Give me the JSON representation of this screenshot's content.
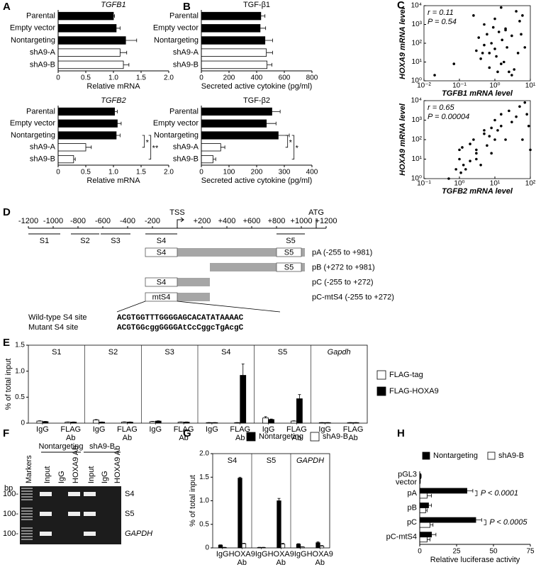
{
  "chart_data": [
    {
      "type": "bar",
      "orientation": "horizontal",
      "panel": "A",
      "title": "TGFB1",
      "title_italic": true,
      "categories": [
        "Parental",
        "Empty vector",
        "Nontargeting",
        "shA9-A",
        "shA9-B"
      ],
      "values": [
        1.0,
        1.05,
        1.22,
        1.12,
        1.18
      ],
      "errors": [
        0.02,
        0.07,
        0.2,
        0.12,
        0.1
      ],
      "colors": [
        "#000000",
        "#000000",
        "#000000",
        "#ffffff",
        "#ffffff"
      ],
      "xlim": [
        0,
        2
      ],
      "xticks": [
        0,
        0.5,
        {
          "value": 1,
          "label": "1.0"
        },
        1.5,
        {
          "value": 2,
          "label": "2.0"
        }
      ],
      "xlabel": "Relative mRNA"
    },
    {
      "type": "bar",
      "orientation": "horizontal",
      "title": "TGFB2",
      "title_italic": true,
      "categories": [
        "Parental",
        "Empty vector",
        "Nontargeting",
        "shA9-A",
        "shA9-B"
      ],
      "values": [
        1.02,
        1.07,
        1.05,
        0.5,
        0.28
      ],
      "errors": [
        0.05,
        0.07,
        0.07,
        0.1,
        0.03
      ],
      "colors": [
        "#000000",
        "#000000",
        "#000000",
        "#ffffff",
        "#ffffff"
      ],
      "xlim": [
        0,
        2
      ],
      "xticks": [
        0,
        0.5,
        {
          "value": 1,
          "label": "1.0"
        },
        1.5,
        {
          "value": 2,
          "label": "2.0"
        }
      ],
      "xlabel": "Relative mRNA",
      "annotations": [
        "*",
        "**"
      ]
    },
    {
      "type": "bar",
      "orientation": "horizontal",
      "panel": "B",
      "title": "TGF-β1",
      "title_italic": false,
      "categories": [
        "Parental",
        "Empty vector",
        "Nontargeting",
        "shA9-A",
        "shA9-B"
      ],
      "values": [
        430,
        425,
        460,
        470,
        475
      ],
      "errors": [
        30,
        40,
        55,
        45,
        35
      ],
      "colors": [
        "#000000",
        "#000000",
        "#000000",
        "#ffffff",
        "#ffffff"
      ],
      "xlim": [
        0,
        800
      ],
      "xticks": [
        0,
        200,
        400,
        600,
        800
      ],
      "xlabel": "Secreted active cytokine (pg/ml)"
    },
    {
      "type": "bar",
      "orientation": "horizontal",
      "title": "TGF-β2",
      "title_italic": false,
      "categories": [
        "Parental",
        "Empty vector",
        "Nontargeting",
        "shA9-A",
        "shA9-B"
      ],
      "values": [
        255,
        235,
        278,
        70,
        42
      ],
      "errors": [
        30,
        35,
        40,
        15,
        10
      ],
      "colors": [
        "#000000",
        "#000000",
        "#000000",
        "#ffffff",
        "#ffffff"
      ],
      "xlim": [
        0,
        400
      ],
      "xticks": [
        0,
        100,
        200,
        300,
        400
      ],
      "xlabel": "Secreted active cytokine (pg/ml)",
      "annotations": [
        "*",
        "*"
      ]
    },
    {
      "type": "scatter",
      "panel": "C",
      "xlabel": "TGFB1 mRNA level",
      "ylabel": "HOXA9 mRNA level",
      "axis_labels_italic": true,
      "annotations": [
        "r = 0.11",
        "P = 0.54"
      ],
      "log_x": true,
      "log_y": true,
      "color": "#000000",
      "x": [
        0.02,
        0.07,
        0.25,
        0.3,
        0.35,
        0.4,
        0.5,
        0.5,
        0.6,
        0.7,
        0.7,
        0.8,
        0.9,
        1.0,
        1.0,
        1.1,
        1.2,
        1.3,
        1.5,
        1.6,
        1.8,
        2,
        2.2,
        2.5,
        3,
        3.5,
        4,
        4.5,
        5,
        5.5,
        6,
        7,
        3,
        2,
        1.5,
        0.45
      ],
      "y": [
        2,
        8,
        3000,
        40,
        200,
        15,
        80,
        1000,
        300,
        30,
        5,
        100,
        700,
        2000,
        50,
        20,
        3,
        400,
        8000,
        150,
        10,
        600,
        60,
        3,
        250,
        4,
        5000,
        30,
        1500,
        300,
        3000,
        60,
        2,
        500,
        8,
        30
      ],
      "xlim": [
        0.01,
        10
      ],
      "xticks": [
        {
          "value": 0.01,
          "label": "10⁻²"
        },
        {
          "value": 0.1,
          "label": "10⁻¹"
        },
        {
          "value": 1,
          "label": "10⁰"
        },
        {
          "value": 10,
          "label": "10¹"
        }
      ],
      "ylim": [
        1,
        10000
      ],
      "yticks": [
        {
          "value": 1,
          "label": "10⁰"
        },
        {
          "value": 10,
          "label": "10¹"
        },
        {
          "value": 100,
          "label": "10²"
        },
        {
          "value": 1000,
          "label": "10³"
        },
        {
          "value": 10000,
          "label": "10⁴"
        }
      ]
    },
    {
      "type": "scatter",
      "xlabel": "TGFB2 mRNA level",
      "ylabel": "HOXA9 mRNA level",
      "axis_labels_italic": true,
      "annotations": [
        "r = 0.65",
        "P = 0.00004"
      ],
      "log_x": true,
      "log_y": true,
      "color": "#000000",
      "x": [
        0.5,
        0.8,
        1,
        1,
        1.1,
        1.2,
        1.5,
        2,
        2,
        2.5,
        3,
        3,
        4,
        5,
        5,
        6,
        7,
        8,
        10,
        10,
        12,
        15,
        15,
        20,
        25,
        30,
        40,
        50,
        60,
        70,
        80,
        90,
        100,
        8,
        3,
        1.3
      ],
      "y": [
        1,
        3,
        10,
        30,
        2,
        40,
        3,
        8,
        60,
        100,
        20,
        30,
        5,
        200,
        300,
        50,
        150,
        400,
        100,
        1000,
        300,
        500,
        2000,
        100,
        3000,
        800,
        1500,
        5000,
        100,
        8000,
        2000,
        500,
        30,
        20,
        10,
        5
      ],
      "xlim": [
        0.1,
        100
      ],
      "xticks": [
        {
          "value": 0.1,
          "label": "10⁻¹"
        },
        {
          "value": 1,
          "label": "10⁰"
        },
        {
          "value": 10,
          "label": "10¹"
        },
        {
          "value": 100,
          "label": "10²"
        }
      ],
      "ylim": [
        1,
        10000
      ],
      "yticks": [
        {
          "value": 1,
          "label": "10⁰"
        },
        {
          "value": 10,
          "label": "10¹"
        },
        {
          "value": 100,
          "label": "10²"
        },
        {
          "value": 1000,
          "label": "10³"
        },
        {
          "value": 10000,
          "label": "10⁴"
        }
      ]
    },
    {
      "type": "facet_bar",
      "panel": "E",
      "facets": [
        "S1",
        "S2",
        "S3",
        "S4",
        "S5",
        "Gapdh"
      ],
      "facets_italic": [
        false,
        false,
        false,
        false,
        false,
        true
      ],
      "categories": [
        [
          "IgG"
        ],
        [
          "FLAG",
          "Ab"
        ]
      ],
      "series": [
        {
          "name": "FLAG-tag",
          "color": "#ffffff",
          "values": [
            [
              0.04,
              0.02
            ],
            [
              0.06,
              0.02
            ],
            [
              0.03,
              0.02
            ],
            [
              0.01,
              0.01
            ],
            [
              0.1,
              0.04
            ],
            [
              0.01,
              0.01
            ]
          ],
          "errors": [
            [
              0.005,
              0.003
            ],
            [
              0.01,
              0.005
            ],
            [
              0.005,
              0.003
            ],
            [
              0.002,
              0.002
            ],
            [
              0.025,
              0.005
            ],
            [
              0.002,
              0.002
            ]
          ]
        },
        {
          "name": "FLAG-HOXA9",
          "color": "#000000",
          "values": [
            [
              0.03,
              0.02
            ],
            [
              0.02,
              0.02
            ],
            [
              0.04,
              0.02
            ],
            [
              0.01,
              0.92
            ],
            [
              0.07,
              0.47
            ],
            [
              0.01,
              0.01
            ]
          ],
          "errors": [
            [
              0.004,
              0.003
            ],
            [
              0.003,
              0.003
            ],
            [
              0.005,
              0.003
            ],
            [
              0.002,
              0.22
            ],
            [
              0.01,
              0.08
            ],
            [
              0.002,
              0.002
            ]
          ]
        }
      ],
      "ylim": [
        0,
        1.5
      ],
      "yticks": [
        0,
        0.5,
        {
          "value": 1,
          "label": "1.0"
        },
        1.5
      ],
      "ylabel": "% of total input",
      "legend": "right"
    },
    {
      "type": "facet_bar",
      "panel": "G",
      "facets": [
        "S4",
        "S5",
        "GAPDH"
      ],
      "facets_italic": [
        false,
        false,
        true
      ],
      "categories": [
        [
          "IgG"
        ],
        [
          "HOXA9",
          "Ab"
        ]
      ],
      "series": [
        {
          "name": "Nontargeting",
          "color": "#000000",
          "values": [
            [
              0.06,
              1.48
            ],
            [
              0.01,
              1.0
            ],
            [
              0.08,
              0.11
            ]
          ],
          "errors": [
            [
              0.005,
              0.02
            ],
            [
              0.002,
              0.05
            ],
            [
              0.01,
              0.02
            ]
          ]
        },
        {
          "name": "shA9-B",
          "color": "#ffffff",
          "values": [
            [
              0.01,
              0.09
            ],
            [
              0.01,
              0.08
            ],
            [
              0.02,
              0.04
            ]
          ],
          "errors": [
            [
              0.002,
              0.01
            ],
            [
              0.002,
              0.02
            ],
            [
              0.005,
              0.01
            ]
          ]
        }
      ],
      "ylim": [
        0,
        2
      ],
      "yticks": [
        0,
        0.5,
        {
          "value": 1,
          "label": "1.0"
        },
        1.5,
        {
          "value": 2,
          "label": "2.0"
        }
      ],
      "ylabel": "% of total input",
      "legend": "top"
    },
    {
      "type": "bar",
      "orientation": "horizontal",
      "panel": "H",
      "categories": [
        [
          "pGL3",
          "vector"
        ],
        [
          "pA"
        ],
        [
          "pB"
        ],
        [
          "pC"
        ],
        [
          "pC-mtS4"
        ]
      ],
      "series": [
        {
          "name": "Nontargeting",
          "color": "#000000",
          "values": [
            0.8,
            32,
            6,
            38,
            8
          ],
          "errors": [
            0.2,
            4,
            2,
            4,
            3
          ]
        },
        {
          "name": "shA9-B",
          "color": "#ffffff",
          "values": [
            0.3,
            5,
            4,
            7,
            5
          ],
          "errors": [
            0.1,
            3,
            1,
            2,
            2
          ]
        }
      ],
      "xlim": [
        0,
        75
      ],
      "xticks": [
        0,
        25,
        50,
        75
      ],
      "xlabel": "Relative luciferase activity",
      "annotations": [
        "P < 0.0001",
        "P < 0.0005"
      ],
      "legend": "top"
    }
  ],
  "diagram": {
    "panel": "D",
    "ruler": [
      "-1200",
      "-1000",
      "-800",
      "-600",
      "-400",
      "-200",
      "+200",
      "+400",
      "+600",
      "+800",
      "+1000",
      "+1200"
    ],
    "tss": "TSS",
    "atg": "ATG",
    "sites": [
      "S1",
      "S2",
      "S3",
      "S4",
      "S5"
    ],
    "constructs": [
      {
        "label": "pA (-255 to +981)",
        "boxes": [
          "S4",
          "S5"
        ]
      },
      {
        "label": "pB (+272 to +981)",
        "boxes": [
          "S5"
        ]
      },
      {
        "label": "pC (-255 to +272)",
        "boxes": [
          "S4"
        ]
      },
      {
        "label": "pC-mtS4 (-255 to +272)",
        "boxes": [
          "mtS4"
        ]
      }
    ],
    "sequences": [
      {
        "label": "Wild-type S4 site",
        "seq": "ACGTGGTTTGGGGAGCACATATAAAAC"
      },
      {
        "label": "Mutant S4 site",
        "seq": "ACGTGGcggGGGGAtCcCggcTgAcgC"
      }
    ]
  },
  "gel": {
    "panel": "F",
    "groups": [
      "Nontargeting",
      "shA9-B"
    ],
    "lanes": [
      "Markers",
      "Input",
      "IgG",
      "HOXA9 Ab",
      "Input",
      "IgG",
      "HOXA9 Ab"
    ],
    "unit": "bp",
    "size_labels": [
      "100-",
      "100-",
      "100-"
    ],
    "rows": [
      "S4",
      "S5",
      "GAPDH"
    ]
  }
}
